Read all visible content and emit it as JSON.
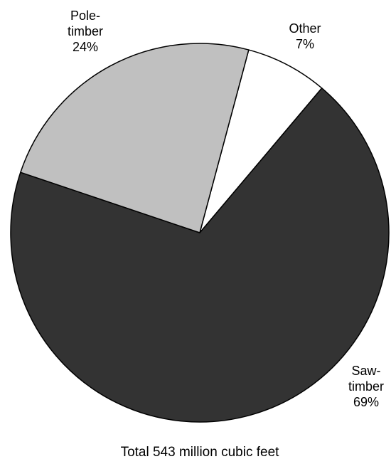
{
  "chart_data": {
    "type": "pie",
    "slices": [
      {
        "name": "Other",
        "label_lines": [
          "Other",
          "7%"
        ],
        "value": 7,
        "color": "#ffffff"
      },
      {
        "name": "Saw-timber",
        "label_lines": [
          "Saw-",
          "timber",
          "69%"
        ],
        "value": 69,
        "color": "#333333"
      },
      {
        "name": "Pole-timber",
        "label_lines": [
          "Pole-",
          "timber",
          "24%"
        ],
        "value": 24,
        "color": "#c0c0c0"
      }
    ],
    "start_angle_deg": 15,
    "direction": "clockwise",
    "outline_color": "#000000",
    "caption": "Total 543 million cubic feet"
  }
}
